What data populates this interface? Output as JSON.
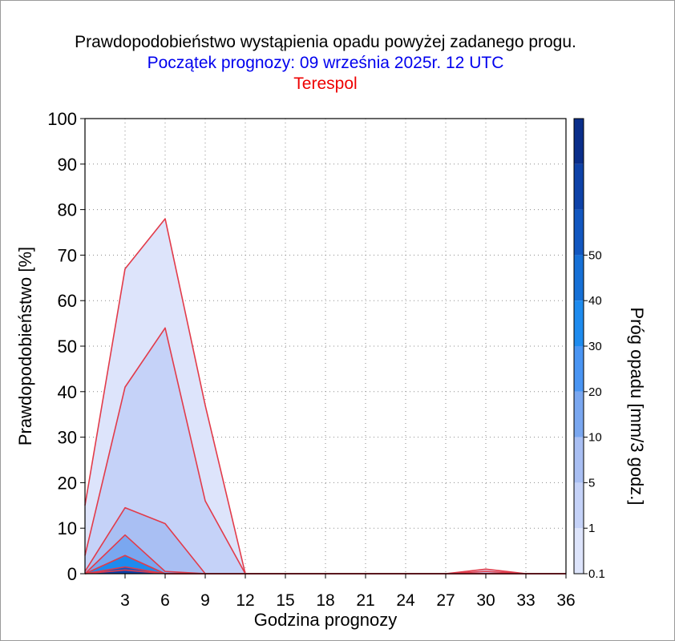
{
  "header": {
    "title": "Prawdopodobieństwo wystąpienia opadu powyżej zadanego progu.",
    "subtitle": "Początek prognozy: 09 września 2025r. 12 UTC",
    "location": "Terespol"
  },
  "chart_data": {
    "type": "area",
    "title": "Prawdopodobieństwo wystąpienia opadu powyżej zadanego progu.",
    "subtitle": "Początek prognozy: 09 września 2025r. 12 UTC",
    "location": "Terespol",
    "xlabel": "Godzina prognozy",
    "ylabel": "Prawdopodobieństwo [%]",
    "colorbar_label": "Próg opadu [mm/3 godz.]",
    "x": [
      0,
      3,
      6,
      9,
      12,
      15,
      18,
      21,
      24,
      27,
      30,
      33,
      36
    ],
    "xticks": [
      3,
      6,
      9,
      12,
      15,
      18,
      21,
      24,
      27,
      30,
      33,
      36
    ],
    "xlim": [
      0,
      36
    ],
    "yticks": [
      0,
      10,
      20,
      30,
      40,
      50,
      60,
      70,
      80,
      90,
      100
    ],
    "ylim": [
      0,
      100
    ],
    "grid": true,
    "colorbar_ticks": [
      "0.1",
      "1",
      "5",
      "10",
      "20",
      "30",
      "40",
      "50"
    ],
    "colorbar_colors": [
      "#dde4fb",
      "#c5d2f8",
      "#a9bff3",
      "#7aa7f0",
      "#4a95f3",
      "#1e8bee",
      "#1670d6",
      "#1257c0",
      "#0e42a8",
      "#0a2e8a"
    ],
    "series": [
      {
        "threshold": "0.1",
        "color": "#dde4fb",
        "values": [
          15,
          67,
          78,
          37,
          0,
          0,
          0,
          0,
          0,
          0,
          1,
          0,
          0
        ]
      },
      {
        "threshold": "1",
        "color": "#c5d2f8",
        "values": [
          4,
          41,
          54,
          16,
          0,
          0,
          0,
          0,
          0,
          0,
          0.5,
          0,
          0
        ]
      },
      {
        "threshold": "5",
        "color": "#a9bff3",
        "values": [
          0.5,
          14.5,
          11,
          0,
          0,
          0,
          0,
          0,
          0,
          0,
          0,
          0,
          0
        ]
      },
      {
        "threshold": "10",
        "color": "#7aa7f0",
        "values": [
          0,
          8.5,
          0.5,
          0,
          0,
          0,
          0,
          0,
          0,
          0,
          0,
          0,
          0
        ]
      },
      {
        "threshold": "20",
        "color": "#1e8bee",
        "values": [
          0,
          4,
          0,
          0,
          0,
          0,
          0,
          0,
          0,
          0,
          0,
          0,
          0
        ]
      },
      {
        "threshold": "30",
        "color": "#1257c0",
        "values": [
          0,
          1.5,
          0,
          0,
          0,
          0,
          0,
          0,
          0,
          0,
          0,
          0,
          0
        ]
      },
      {
        "threshold": "40",
        "color": "#0e42a8",
        "values": [
          0,
          0.8,
          0,
          0,
          0,
          0,
          0,
          0,
          0,
          0,
          0,
          0,
          0
        ]
      }
    ],
    "line_color": "#e23b4a"
  }
}
